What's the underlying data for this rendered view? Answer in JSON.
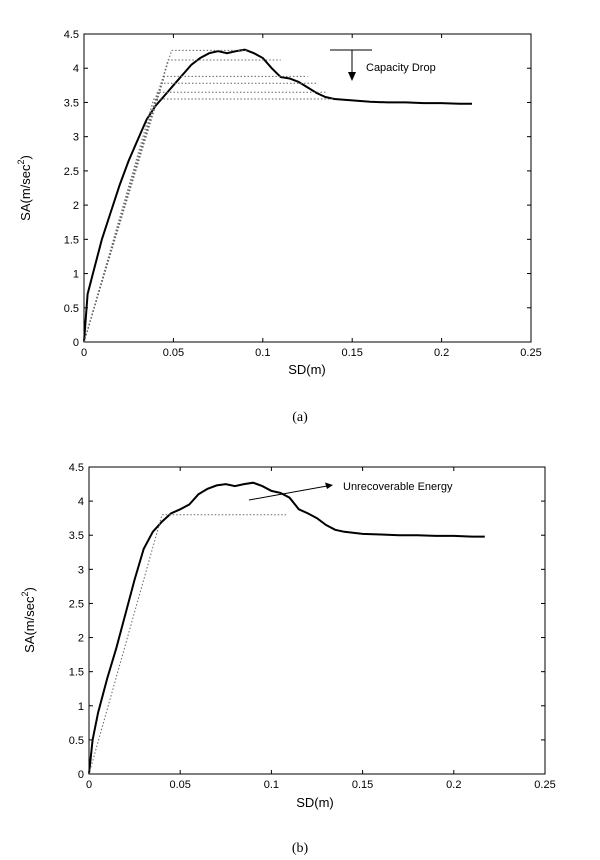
{
  "chart_data": [
    {
      "type": "line",
      "panel_label": "(a)",
      "xlabel": "SD(m)",
      "ylabel": "SA(m/sec^2)",
      "ylabel_base": "SA(m/sec",
      "ylabel_sup": "2",
      "ylabel_close": ")",
      "xlim": [
        0,
        0.25
      ],
      "ylim": [
        0,
        4.5
      ],
      "xticks": [
        "0",
        "0.05",
        "0.1",
        "0.15",
        "0.2",
        "0.25"
      ],
      "yticks": [
        "0",
        "0.5",
        "1",
        "1.5",
        "2",
        "2.5",
        "3",
        "3.5",
        "4",
        "4.5"
      ],
      "grid": false,
      "annotation": "Capacity Drop",
      "series": [
        {
          "style": "solid",
          "x": [
            0,
            0.002,
            0.005,
            0.01,
            0.015,
            0.02,
            0.025,
            0.03,
            0.035,
            0.04,
            0.045,
            0.05,
            0.055,
            0.06,
            0.065,
            0.07,
            0.075,
            0.08,
            0.085,
            0.09,
            0.095,
            0.1,
            0.105,
            0.11,
            0.115,
            0.12,
            0.125,
            0.13,
            0.135,
            0.14,
            0.15,
            0.16,
            0.17,
            0.18,
            0.19,
            0.2,
            0.21,
            0.217
          ],
          "y": [
            0,
            0.7,
            1.0,
            1.5,
            1.9,
            2.3,
            2.65,
            2.95,
            3.25,
            3.45,
            3.6,
            3.75,
            3.9,
            4.05,
            4.15,
            4.22,
            4.25,
            4.22,
            4.25,
            4.27,
            4.22,
            4.15,
            4.0,
            3.87,
            3.85,
            3.8,
            3.72,
            3.64,
            3.58,
            3.55,
            3.53,
            3.51,
            3.5,
            3.5,
            3.49,
            3.49,
            3.48,
            3.48
          ]
        },
        {
          "style": "dotted",
          "x": [
            0,
            0.049,
            0.092
          ],
          "y": [
            0,
            4.26,
            4.26
          ]
        },
        {
          "style": "dotted",
          "x": [
            0,
            0.047,
            0.11
          ],
          "y": [
            0,
            4.12,
            4.12
          ]
        },
        {
          "style": "dotted",
          "x": [
            0,
            0.045,
            0.125
          ],
          "y": [
            0,
            3.88,
            3.88
          ]
        },
        {
          "style": "dotted",
          "x": [
            0,
            0.043,
            0.13
          ],
          "y": [
            0,
            3.78,
            3.78
          ]
        },
        {
          "style": "dotted",
          "x": [
            0,
            0.041,
            0.135
          ],
          "y": [
            0,
            3.65,
            3.65
          ]
        },
        {
          "style": "dotted",
          "x": [
            0,
            0.039,
            0.14
          ],
          "y": [
            0,
            3.55,
            3.55
          ]
        }
      ]
    },
    {
      "type": "line",
      "panel_label": "(b)",
      "xlabel": "SD(m)",
      "ylabel": "SA(m/sec^2)",
      "ylabel_base": "SA(m/sec",
      "ylabel_sup": "2",
      "ylabel_close": ")",
      "xlim": [
        0,
        0.25
      ],
      "ylim": [
        0,
        4.5
      ],
      "xticks": [
        "0",
        "0.05",
        "0.1",
        "0.15",
        "0.2",
        "0.25"
      ],
      "yticks": [
        "0",
        "0.5",
        "1",
        "1.5",
        "2",
        "2.5",
        "3",
        "3.5",
        "4",
        "4.5"
      ],
      "grid": false,
      "annotation": "Unrecoverable Energy",
      "series": [
        {
          "style": "solid",
          "x": [
            0,
            0.002,
            0.005,
            0.01,
            0.015,
            0.02,
            0.025,
            0.03,
            0.035,
            0.04,
            0.045,
            0.05,
            0.055,
            0.06,
            0.065,
            0.07,
            0.075,
            0.08,
            0.085,
            0.09,
            0.095,
            0.1,
            0.105,
            0.11,
            0.115,
            0.12,
            0.125,
            0.13,
            0.135,
            0.14,
            0.15,
            0.16,
            0.17,
            0.18,
            0.19,
            0.2,
            0.21,
            0.217
          ],
          "y": [
            0,
            0.5,
            0.9,
            1.4,
            1.85,
            2.35,
            2.85,
            3.3,
            3.55,
            3.7,
            3.82,
            3.88,
            3.95,
            4.1,
            4.18,
            4.23,
            4.25,
            4.22,
            4.25,
            4.27,
            4.22,
            4.15,
            4.12,
            4.05,
            3.88,
            3.82,
            3.75,
            3.65,
            3.58,
            3.55,
            3.52,
            3.51,
            3.5,
            3.5,
            3.49,
            3.49,
            3.48,
            3.48
          ]
        },
        {
          "style": "dotted",
          "x": [
            0,
            0.04,
            0.108
          ],
          "y": [
            0,
            3.8,
            3.8
          ]
        }
      ]
    }
  ]
}
